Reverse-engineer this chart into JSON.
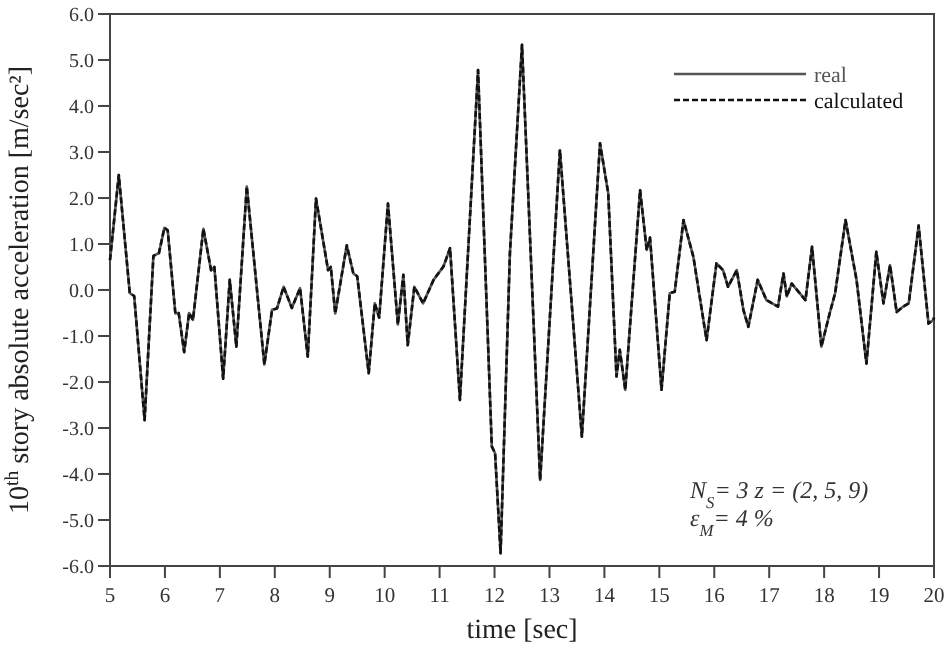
{
  "chart_data": {
    "type": "line",
    "xlabel": "time [sec]",
    "ylabel": "10$^{th}$ story absolute acceleration  [m/sec²]",
    "xlim": [
      5,
      20
    ],
    "ylim": [
      -6,
      6
    ],
    "xticks": [
      5,
      6,
      7,
      8,
      9,
      10,
      11,
      12,
      13,
      14,
      15,
      16,
      17,
      18,
      19,
      20
    ],
    "yticks": [
      {
        "value": -6,
        "label": "-6.0"
      },
      {
        "value": -5,
        "label": "-5.0"
      },
      {
        "value": -4,
        "label": "-4.0"
      },
      {
        "value": -3,
        "label": "-3.0"
      },
      {
        "value": -2,
        "label": "-2.0"
      },
      {
        "value": -1,
        "label": "-1.0"
      },
      {
        "value": 0,
        "label": "0.0"
      },
      {
        "value": 1,
        "label": "1.0"
      },
      {
        "value": 2,
        "label": "2.0"
      },
      {
        "value": 3,
        "label": "3.0"
      },
      {
        "value": 4,
        "label": "4.0"
      },
      {
        "value": 5,
        "label": "5.0"
      },
      {
        "value": 6,
        "label": "6.0"
      }
    ],
    "x": [
      5.0,
      5.16,
      5.36,
      5.44,
      5.63,
      5.79,
      5.89,
      5.99,
      6.05,
      6.19,
      6.25,
      6.35,
      6.44,
      6.51,
      6.7,
      6.84,
      6.9,
      7.06,
      7.18,
      7.3,
      7.49,
      7.67,
      7.81,
      7.95,
      8.04,
      8.16,
      8.31,
      8.46,
      8.6,
      8.75,
      8.97,
      9.02,
      9.1,
      9.31,
      9.43,
      9.5,
      9.71,
      9.82,
      9.9,
      10.06,
      10.24,
      10.34,
      10.42,
      10.54,
      10.7,
      10.89,
      11.07,
      11.19,
      11.37,
      11.7,
      11.95,
      12.01,
      12.11,
      12.28,
      12.5,
      12.83,
      13.19,
      13.59,
      13.92,
      14.07,
      14.22,
      14.28,
      14.38,
      14.65,
      14.77,
      14.83,
      15.04,
      15.19,
      15.28,
      15.44,
      15.62,
      15.86,
      16.04,
      16.16,
      16.25,
      16.41,
      16.53,
      16.62,
      16.79,
      16.95,
      17.16,
      17.26,
      17.32,
      17.41,
      17.66,
      17.78,
      17.95,
      18.1,
      18.2,
      18.39,
      18.59,
      18.77,
      18.95,
      19.08,
      19.2,
      19.32,
      19.44,
      19.54,
      19.72,
      19.9,
      19.99,
      20.0
    ],
    "series": [
      {
        "name": "real",
        "color": "#555555",
        "line_style": "solid",
        "values": [
          0.65,
          2.5,
          -0.07,
          -0.13,
          -2.83,
          0.74,
          0.8,
          1.35,
          1.3,
          -0.51,
          -0.5,
          -1.35,
          -0.5,
          -0.65,
          1.33,
          0.43,
          0.5,
          -1.93,
          0.22,
          -1.23,
          2.25,
          0.07,
          -1.62,
          -0.43,
          -0.4,
          0.07,
          -0.39,
          0.04,
          -1.45,
          1.99,
          0.43,
          0.5,
          -0.51,
          0.97,
          0.36,
          0.3,
          -1.81,
          -0.29,
          -0.6,
          1.88,
          -0.75,
          0.33,
          -1.2,
          0.07,
          -0.29,
          0.22,
          0.51,
          0.91,
          -2.39,
          4.78,
          -3.4,
          -3.55,
          -5.72,
          0.8,
          5.33,
          -4.13,
          3.04,
          -3.19,
          3.19,
          2.1,
          -1.88,
          -1.3,
          -2.17,
          2.17,
          0.87,
          1.14,
          -2.17,
          -0.07,
          -0.04,
          1.52,
          0.72,
          -1.09,
          0.58,
          0.43,
          0.07,
          0.43,
          -0.43,
          -0.8,
          0.22,
          -0.22,
          -0.36,
          0.36,
          -0.14,
          0.14,
          -0.22,
          0.94,
          -1.23,
          -0.51,
          -0.07,
          1.52,
          0.22,
          -1.6,
          0.83,
          -0.29,
          0.54,
          -0.48,
          -0.36,
          -0.29,
          1.4,
          -0.73,
          -0.65,
          -0.6
        ]
      },
      {
        "name": "calculated",
        "color": "#111111",
        "line_style": "dashed",
        "values": [
          0.65,
          2.5,
          -0.07,
          -0.13,
          -2.83,
          0.74,
          0.8,
          1.35,
          1.3,
          -0.51,
          -0.5,
          -1.35,
          -0.5,
          -0.65,
          1.33,
          0.43,
          0.5,
          -1.93,
          0.22,
          -1.23,
          2.25,
          0.07,
          -1.62,
          -0.43,
          -0.4,
          0.07,
          -0.39,
          0.04,
          -1.45,
          1.99,
          0.43,
          0.5,
          -0.51,
          0.97,
          0.36,
          0.3,
          -1.81,
          -0.29,
          -0.6,
          1.88,
          -0.75,
          0.33,
          -1.2,
          0.07,
          -0.29,
          0.22,
          0.51,
          0.91,
          -2.39,
          4.78,
          -3.4,
          -3.55,
          -5.72,
          0.8,
          5.33,
          -4.13,
          3.04,
          -3.19,
          3.19,
          2.1,
          -1.88,
          -1.3,
          -2.17,
          2.17,
          0.87,
          1.14,
          -2.17,
          -0.07,
          -0.04,
          1.52,
          0.72,
          -1.09,
          0.58,
          0.43,
          0.07,
          0.43,
          -0.43,
          -0.8,
          0.22,
          -0.22,
          -0.36,
          0.36,
          -0.14,
          0.14,
          -0.22,
          0.94,
          -1.23,
          -0.51,
          -0.07,
          1.52,
          0.22,
          -1.6,
          0.83,
          -0.29,
          0.54,
          -0.48,
          -0.36,
          -0.29,
          1.4,
          -0.73,
          -0.65,
          -0.6
        ]
      }
    ],
    "legend": "top right",
    "grid": false,
    "annotations": [
      "N$_{S}$= 3   z = (2, 5, 9)",
      "ε$_{M}$=  4 %"
    ]
  }
}
